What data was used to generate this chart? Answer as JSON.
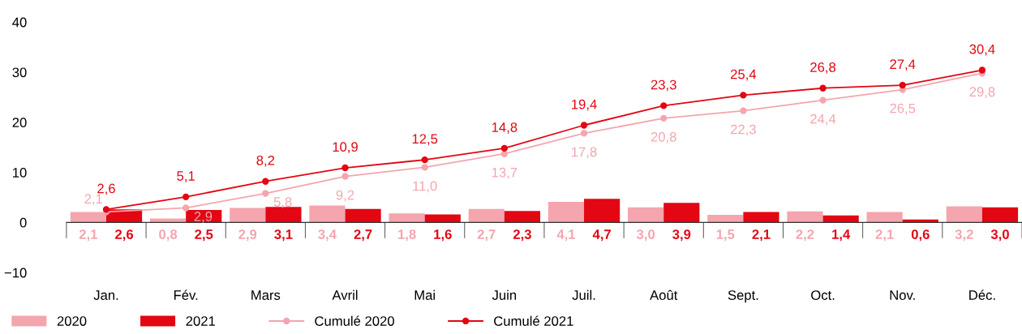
{
  "chart_data": {
    "type": "bar",
    "categories": [
      "Jan.",
      "Fév.",
      "Mars",
      "Avril",
      "Mai",
      "Juin",
      "Juil.",
      "Août",
      "Sept.",
      "Oct.",
      "Nov.",
      "Déc."
    ],
    "series": [
      {
        "name": "2020",
        "color": "#f4a5ae",
        "values": [
          2.1,
          0.8,
          2.9,
          3.4,
          1.8,
          2.7,
          4.1,
          3.0,
          1.5,
          2.2,
          2.1,
          3.2
        ],
        "value_labels": [
          "2,1",
          "0,8",
          "2,9",
          "3,4",
          "1,8",
          "2,7",
          "4,1",
          "3,0",
          "1,5",
          "2,2",
          "2,1",
          "3,2"
        ]
      },
      {
        "name": "2021",
        "color": "#e30613",
        "values": [
          2.6,
          2.5,
          3.1,
          2.7,
          1.6,
          2.3,
          4.7,
          3.9,
          2.1,
          1.4,
          0.6,
          3.0
        ],
        "value_labels": [
          "2,6",
          "2,5",
          "3,1",
          "2,7",
          "1,6",
          "2,3",
          "4,7",
          "3,9",
          "2,1",
          "1,4",
          "0,6",
          "3,0"
        ]
      },
      {
        "name": "Cumulé 2020",
        "type": "line",
        "color": "#f4a5ae",
        "values": [
          2.1,
          2.9,
          5.8,
          9.2,
          11.0,
          13.7,
          17.8,
          20.8,
          22.3,
          24.4,
          26.5,
          29.8
        ],
        "value_labels": [
          "2,1",
          "2,9",
          "5,8",
          "9,2",
          "11,0",
          "13,7",
          "17,8",
          "20,8",
          "22,3",
          "24,4",
          "26,5",
          "29,8"
        ]
      },
      {
        "name": "Cumulé 2021",
        "type": "line",
        "color": "#e30613",
        "values": [
          2.6,
          5.1,
          8.2,
          10.9,
          12.5,
          14.8,
          19.4,
          23.3,
          25.4,
          26.8,
          27.4,
          30.4
        ],
        "value_labels": [
          "2,6",
          "5,1",
          "8,2",
          "10,9",
          "12,5",
          "14,8",
          "19,4",
          "23,3",
          "25,4",
          "26,8",
          "27,4",
          "30,4"
        ]
      }
    ],
    "ylim": [
      -10,
      40
    ],
    "yticks": [
      {
        "value": -10,
        "label": "−10"
      },
      0,
      10,
      20,
      30,
      40
    ],
    "marker": "circle",
    "line_style": "solid",
    "legend": "bottom left"
  }
}
